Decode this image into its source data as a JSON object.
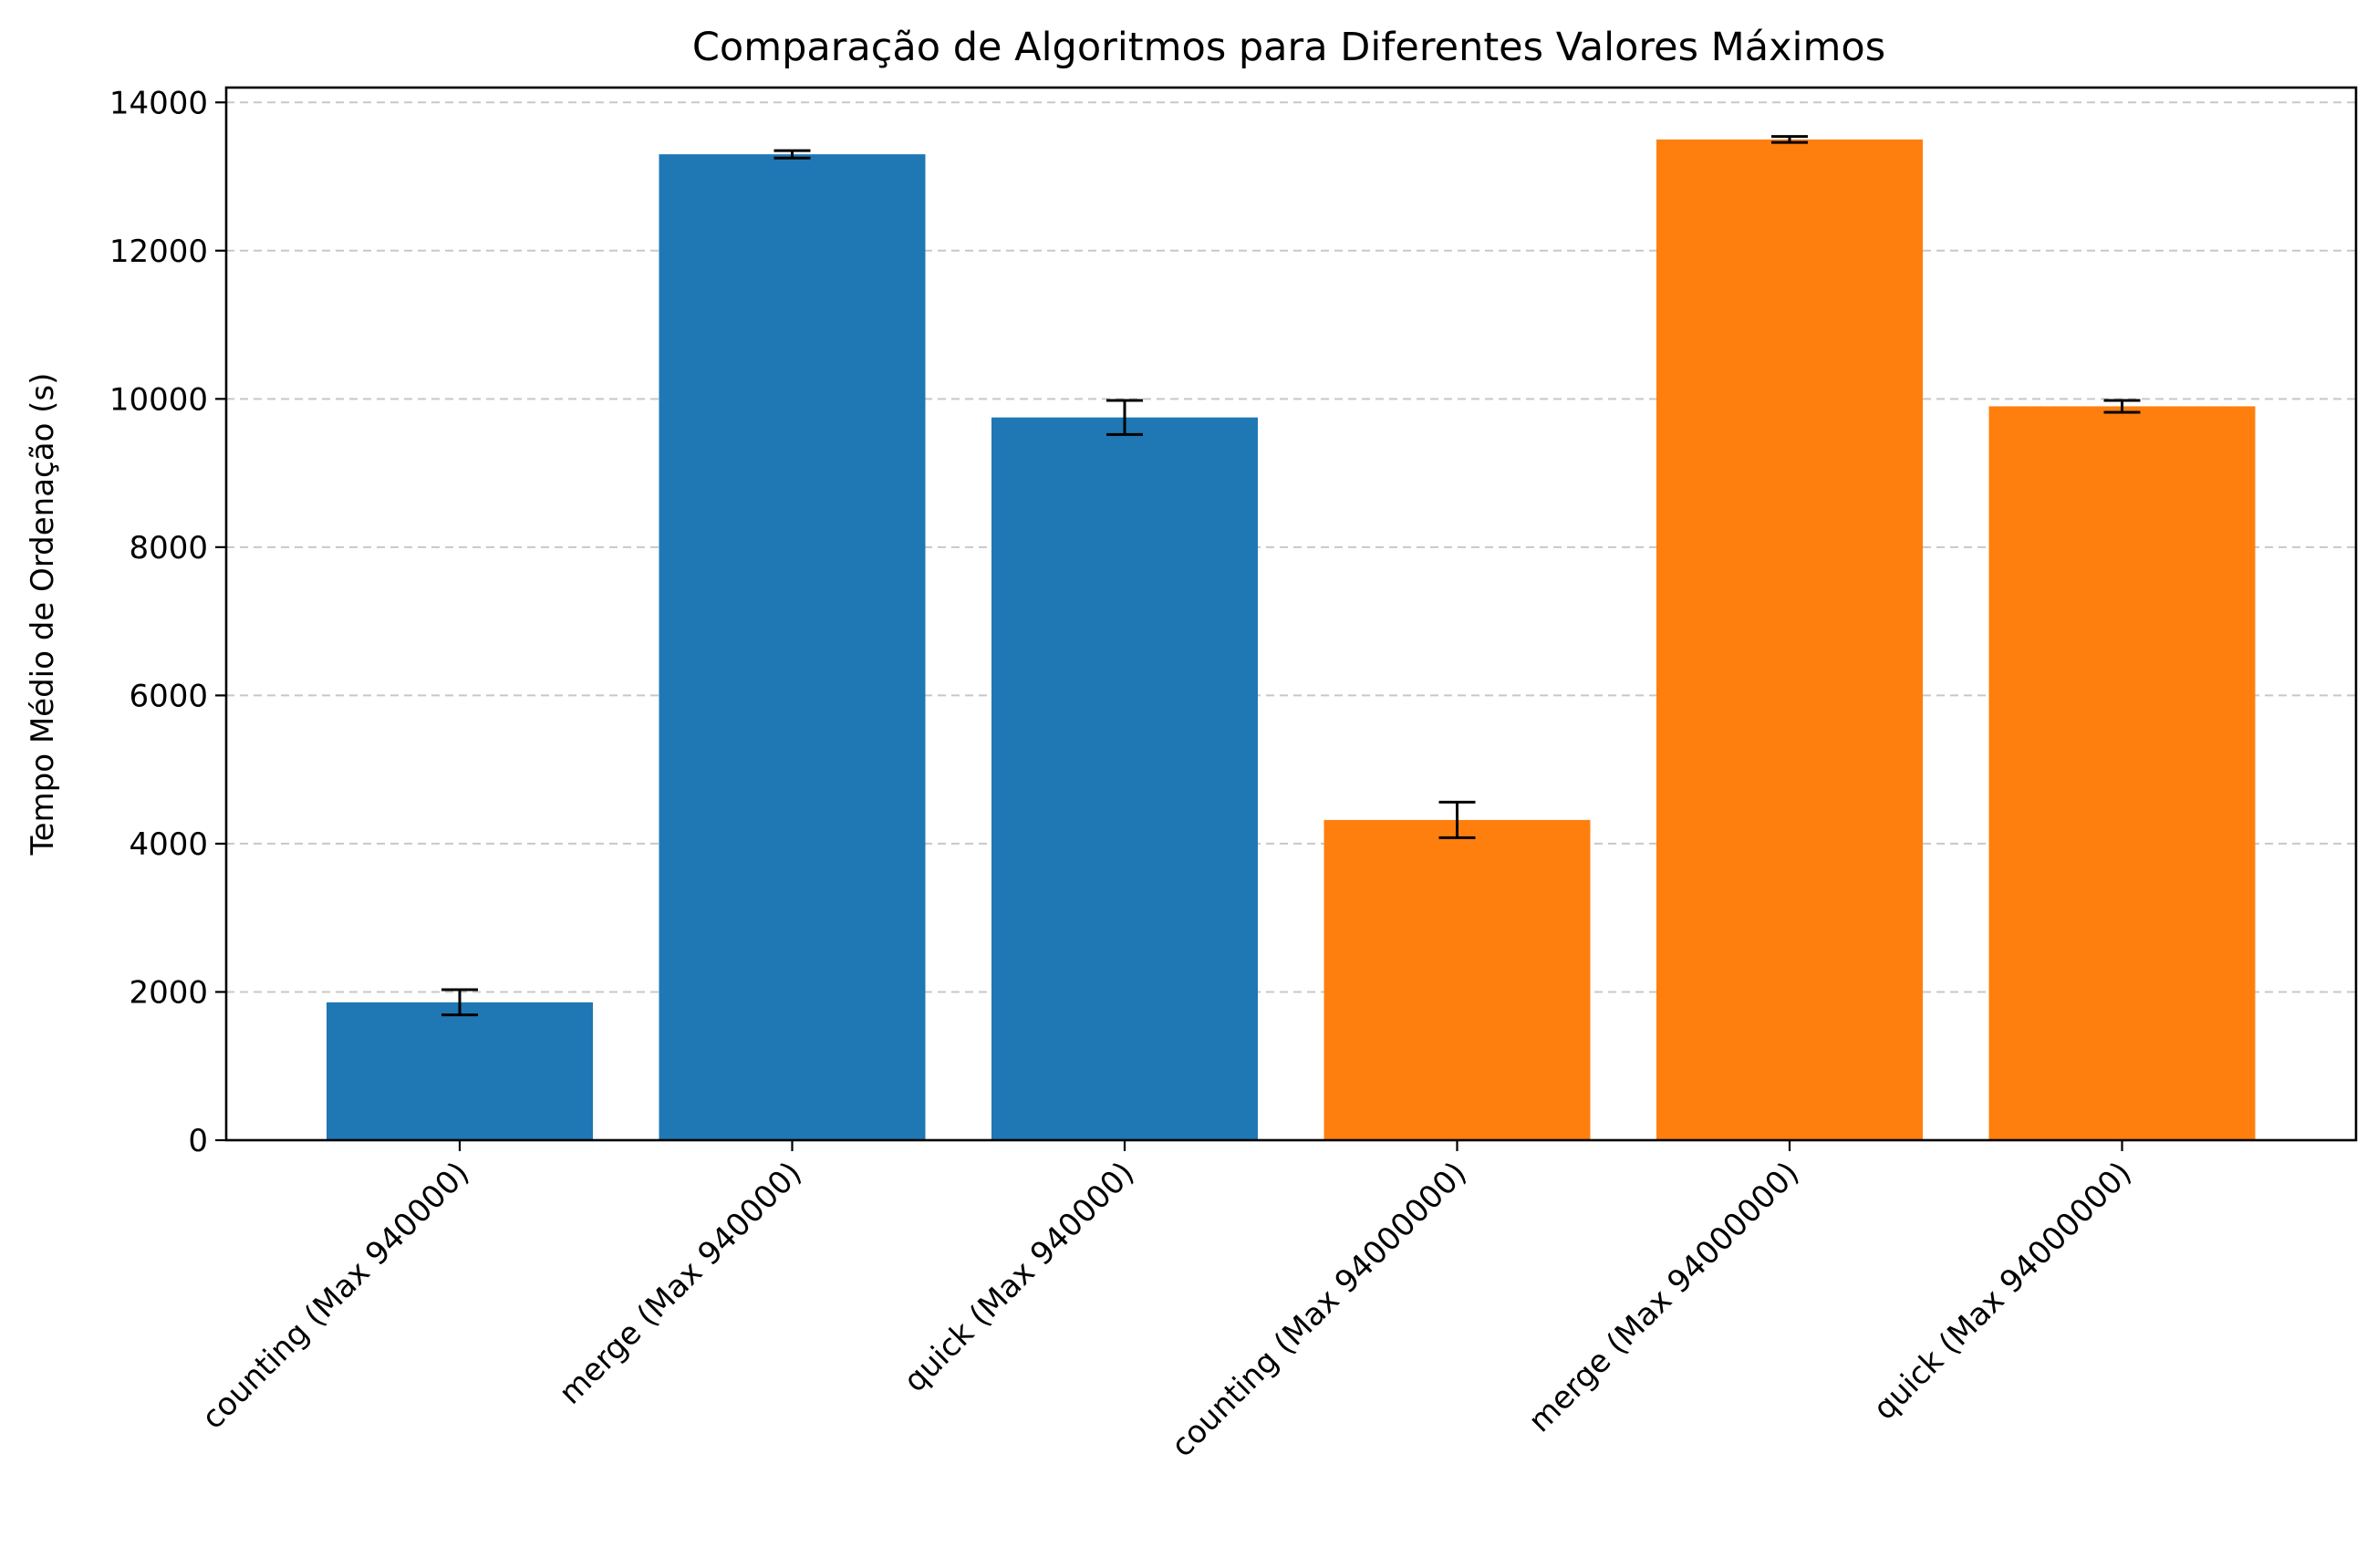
{
  "chart_data": {
    "type": "bar",
    "title": "Comparação de Algoritmos para Diferentes Valores Máximos",
    "xlabel": "",
    "ylabel": "Tempo Médio de Ordenação (s)",
    "ylim": [
      0,
      14200
    ],
    "yticks": [
      0,
      2000,
      4000,
      6000,
      8000,
      10000,
      12000,
      14000
    ],
    "grid": "y",
    "categories": [
      "counting (Max 940000)",
      "merge (Max 940000)",
      "quick (Max 940000)",
      "counting (Max 94000000)",
      "merge (Max 94000000)",
      "quick (Max 94000000)"
    ],
    "values": [
      1860,
      13300,
      9750,
      4320,
      13500,
      9900
    ],
    "errors": [
      170,
      50,
      230,
      240,
      40,
      80
    ],
    "colors": [
      "#1f77b4",
      "#1f77b4",
      "#1f77b4",
      "#ff7f0e",
      "#ff7f0e",
      "#ff7f0e"
    ]
  }
}
